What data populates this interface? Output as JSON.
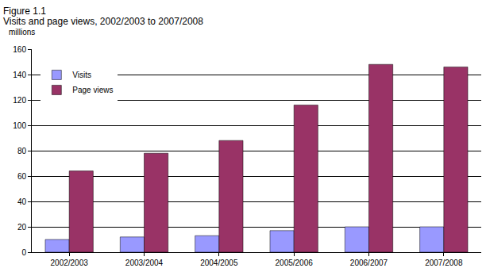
{
  "chart_data": {
    "type": "bar",
    "title": "Figure 1.1",
    "subtitle": "Visits and page views, 2002/2003 to 2007/2008",
    "y_label": "millions",
    "categories": [
      "2002/2003",
      "2003/2004",
      "2004/2005",
      "2005/2006",
      "2006/2007",
      "2007/2008"
    ],
    "series": [
      {
        "name": "Visits",
        "color": "#9999ff",
        "values": [
          10,
          12,
          13,
          17,
          20,
          20
        ]
      },
      {
        "name": "Page views",
        "color": "#993366",
        "values": [
          64,
          78,
          88,
          116,
          148,
          146
        ]
      }
    ],
    "ylim": [
      0,
      160
    ],
    "yticks": [
      0,
      20,
      40,
      60,
      80,
      100,
      120,
      140,
      160
    ],
    "grid": true,
    "legend": "upper left"
  }
}
